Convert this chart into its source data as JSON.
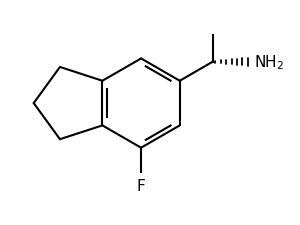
{
  "background": "#ffffff",
  "line_color": "#000000",
  "line_width": 1.5,
  "fig_width": 3.0,
  "fig_height": 2.26,
  "dpi": 100,
  "xlim": [
    -2.8,
    3.2
  ],
  "ylim": [
    -2.5,
    2.5
  ]
}
